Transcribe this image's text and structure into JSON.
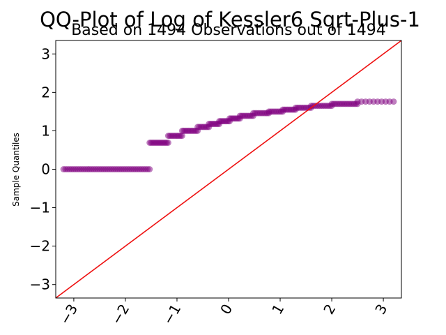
{
  "chart_data": {
    "type": "scatter",
    "title": "QQ-Plot of Log of Kessler6 Sqrt-Plus-1",
    "subtitle": "Based on 1494 Observations out of 1494",
    "xlabel": "",
    "ylabel": "Sample Quantiles",
    "xlim": [
      -3.35,
      3.35
    ],
    "ylim": [
      -3.35,
      3.35
    ],
    "x_ticks": [
      -3,
      -2,
      -1,
      0,
      1,
      2,
      3
    ],
    "y_ticks": [
      -3,
      -2,
      -1,
      0,
      1,
      2,
      3
    ],
    "x_tick_labels": [
      "−3",
      "−2",
      "−1",
      "0",
      "1",
      "2",
      "3"
    ],
    "y_tick_labels": [
      "−3",
      "−2",
      "−1",
      "0",
      "1",
      "2",
      "3"
    ],
    "grid": false,
    "marker_color": "#800080",
    "line_color": "#ee1111",
    "reference_line": {
      "x": [
        -3.35,
        3.35
      ],
      "y": [
        -3.35,
        3.35
      ]
    },
    "series": [
      {
        "steps": [
          {
            "x_start": -3.2,
            "x_end": -1.53,
            "y": 0.0,
            "n": 44
          },
          {
            "x_start": -1.53,
            "x_end": -1.17,
            "y": 0.69,
            "n": 14
          },
          {
            "x_start": -1.17,
            "x_end": -0.9,
            "y": 0.87,
            "n": 10
          },
          {
            "x_start": -0.9,
            "x_end": -0.6,
            "y": 1.0,
            "n": 11
          },
          {
            "x_start": -0.6,
            "x_end": -0.38,
            "y": 1.1,
            "n": 8
          },
          {
            "x_start": -0.38,
            "x_end": -0.18,
            "y": 1.18,
            "n": 8
          },
          {
            "x_start": -0.18,
            "x_end": 0.02,
            "y": 1.25,
            "n": 8
          },
          {
            "x_start": 0.02,
            "x_end": 0.22,
            "y": 1.32,
            "n": 8
          },
          {
            "x_start": 0.22,
            "x_end": 0.48,
            "y": 1.39,
            "n": 9
          },
          {
            "x_start": 0.48,
            "x_end": 0.78,
            "y": 1.46,
            "n": 10
          },
          {
            "x_start": 0.78,
            "x_end": 1.05,
            "y": 1.5,
            "n": 9
          },
          {
            "x_start": 1.05,
            "x_end": 1.3,
            "y": 1.55,
            "n": 9
          },
          {
            "x_start": 1.3,
            "x_end": 1.6,
            "y": 1.6,
            "n": 10
          },
          {
            "x_start": 1.6,
            "x_end": 2.0,
            "y": 1.65,
            "n": 12
          },
          {
            "x_start": 2.0,
            "x_end": 2.5,
            "y": 1.7,
            "n": 16
          },
          {
            "x_start": 2.5,
            "x_end": 3.2,
            "y": 1.76,
            "n": 10
          }
        ]
      }
    ]
  }
}
